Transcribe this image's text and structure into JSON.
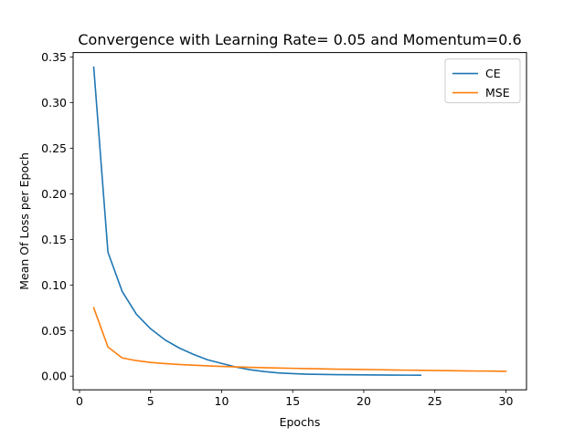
{
  "chart_data": {
    "type": "line",
    "title": "Convergence with Learning Rate= 0.05 and Momentum=0.6",
    "xlabel": "Epochs",
    "ylabel": "Mean Of Loss per Epoch",
    "xlim": [
      -0.45,
      31.45
    ],
    "ylim": [
      -0.015,
      0.355
    ],
    "xticks": [
      0,
      5,
      10,
      15,
      20,
      25,
      30
    ],
    "yticks": [
      0.0,
      0.05,
      0.1,
      0.15,
      0.2,
      0.25,
      0.3,
      0.35
    ],
    "ytick_labels": [
      "0.00",
      "0.05",
      "0.10",
      "0.15",
      "0.20",
      "0.25",
      "0.30",
      "0.35"
    ],
    "grid": false,
    "legend_position": "top-right",
    "series": [
      {
        "name": "CE",
        "color": "#1f77b4",
        "x": [
          1,
          2,
          3,
          4,
          5,
          6,
          7,
          8,
          9,
          10,
          11,
          12,
          13,
          14,
          15,
          16,
          17,
          18,
          19,
          20,
          21,
          22,
          23,
          24
        ],
        "y": [
          0.339,
          0.136,
          0.093,
          0.068,
          0.052,
          0.04,
          0.031,
          0.024,
          0.018,
          0.014,
          0.01,
          0.007,
          0.005,
          0.0035,
          0.0028,
          0.0022,
          0.0019,
          0.0017,
          0.0015,
          0.0014,
          0.0013,
          0.0012,
          0.0011,
          0.001
        ]
      },
      {
        "name": "MSE",
        "color": "#ff7f0e",
        "x": [
          1,
          2,
          3,
          4,
          5,
          6,
          7,
          8,
          9,
          10,
          11,
          12,
          13,
          14,
          15,
          16,
          17,
          18,
          19,
          20,
          21,
          22,
          23,
          24,
          25,
          26,
          27,
          28,
          29,
          30
        ],
        "y": [
          0.075,
          0.032,
          0.02,
          0.017,
          0.015,
          0.0138,
          0.0128,
          0.012,
          0.0113,
          0.0107,
          0.0102,
          0.0097,
          0.0093,
          0.0089,
          0.0086,
          0.0083,
          0.008,
          0.0077,
          0.0075,
          0.0073,
          0.0071,
          0.0068,
          0.0066,
          0.0064,
          0.0062,
          0.006,
          0.0058,
          0.0056,
          0.0055,
          0.0053
        ]
      }
    ]
  }
}
